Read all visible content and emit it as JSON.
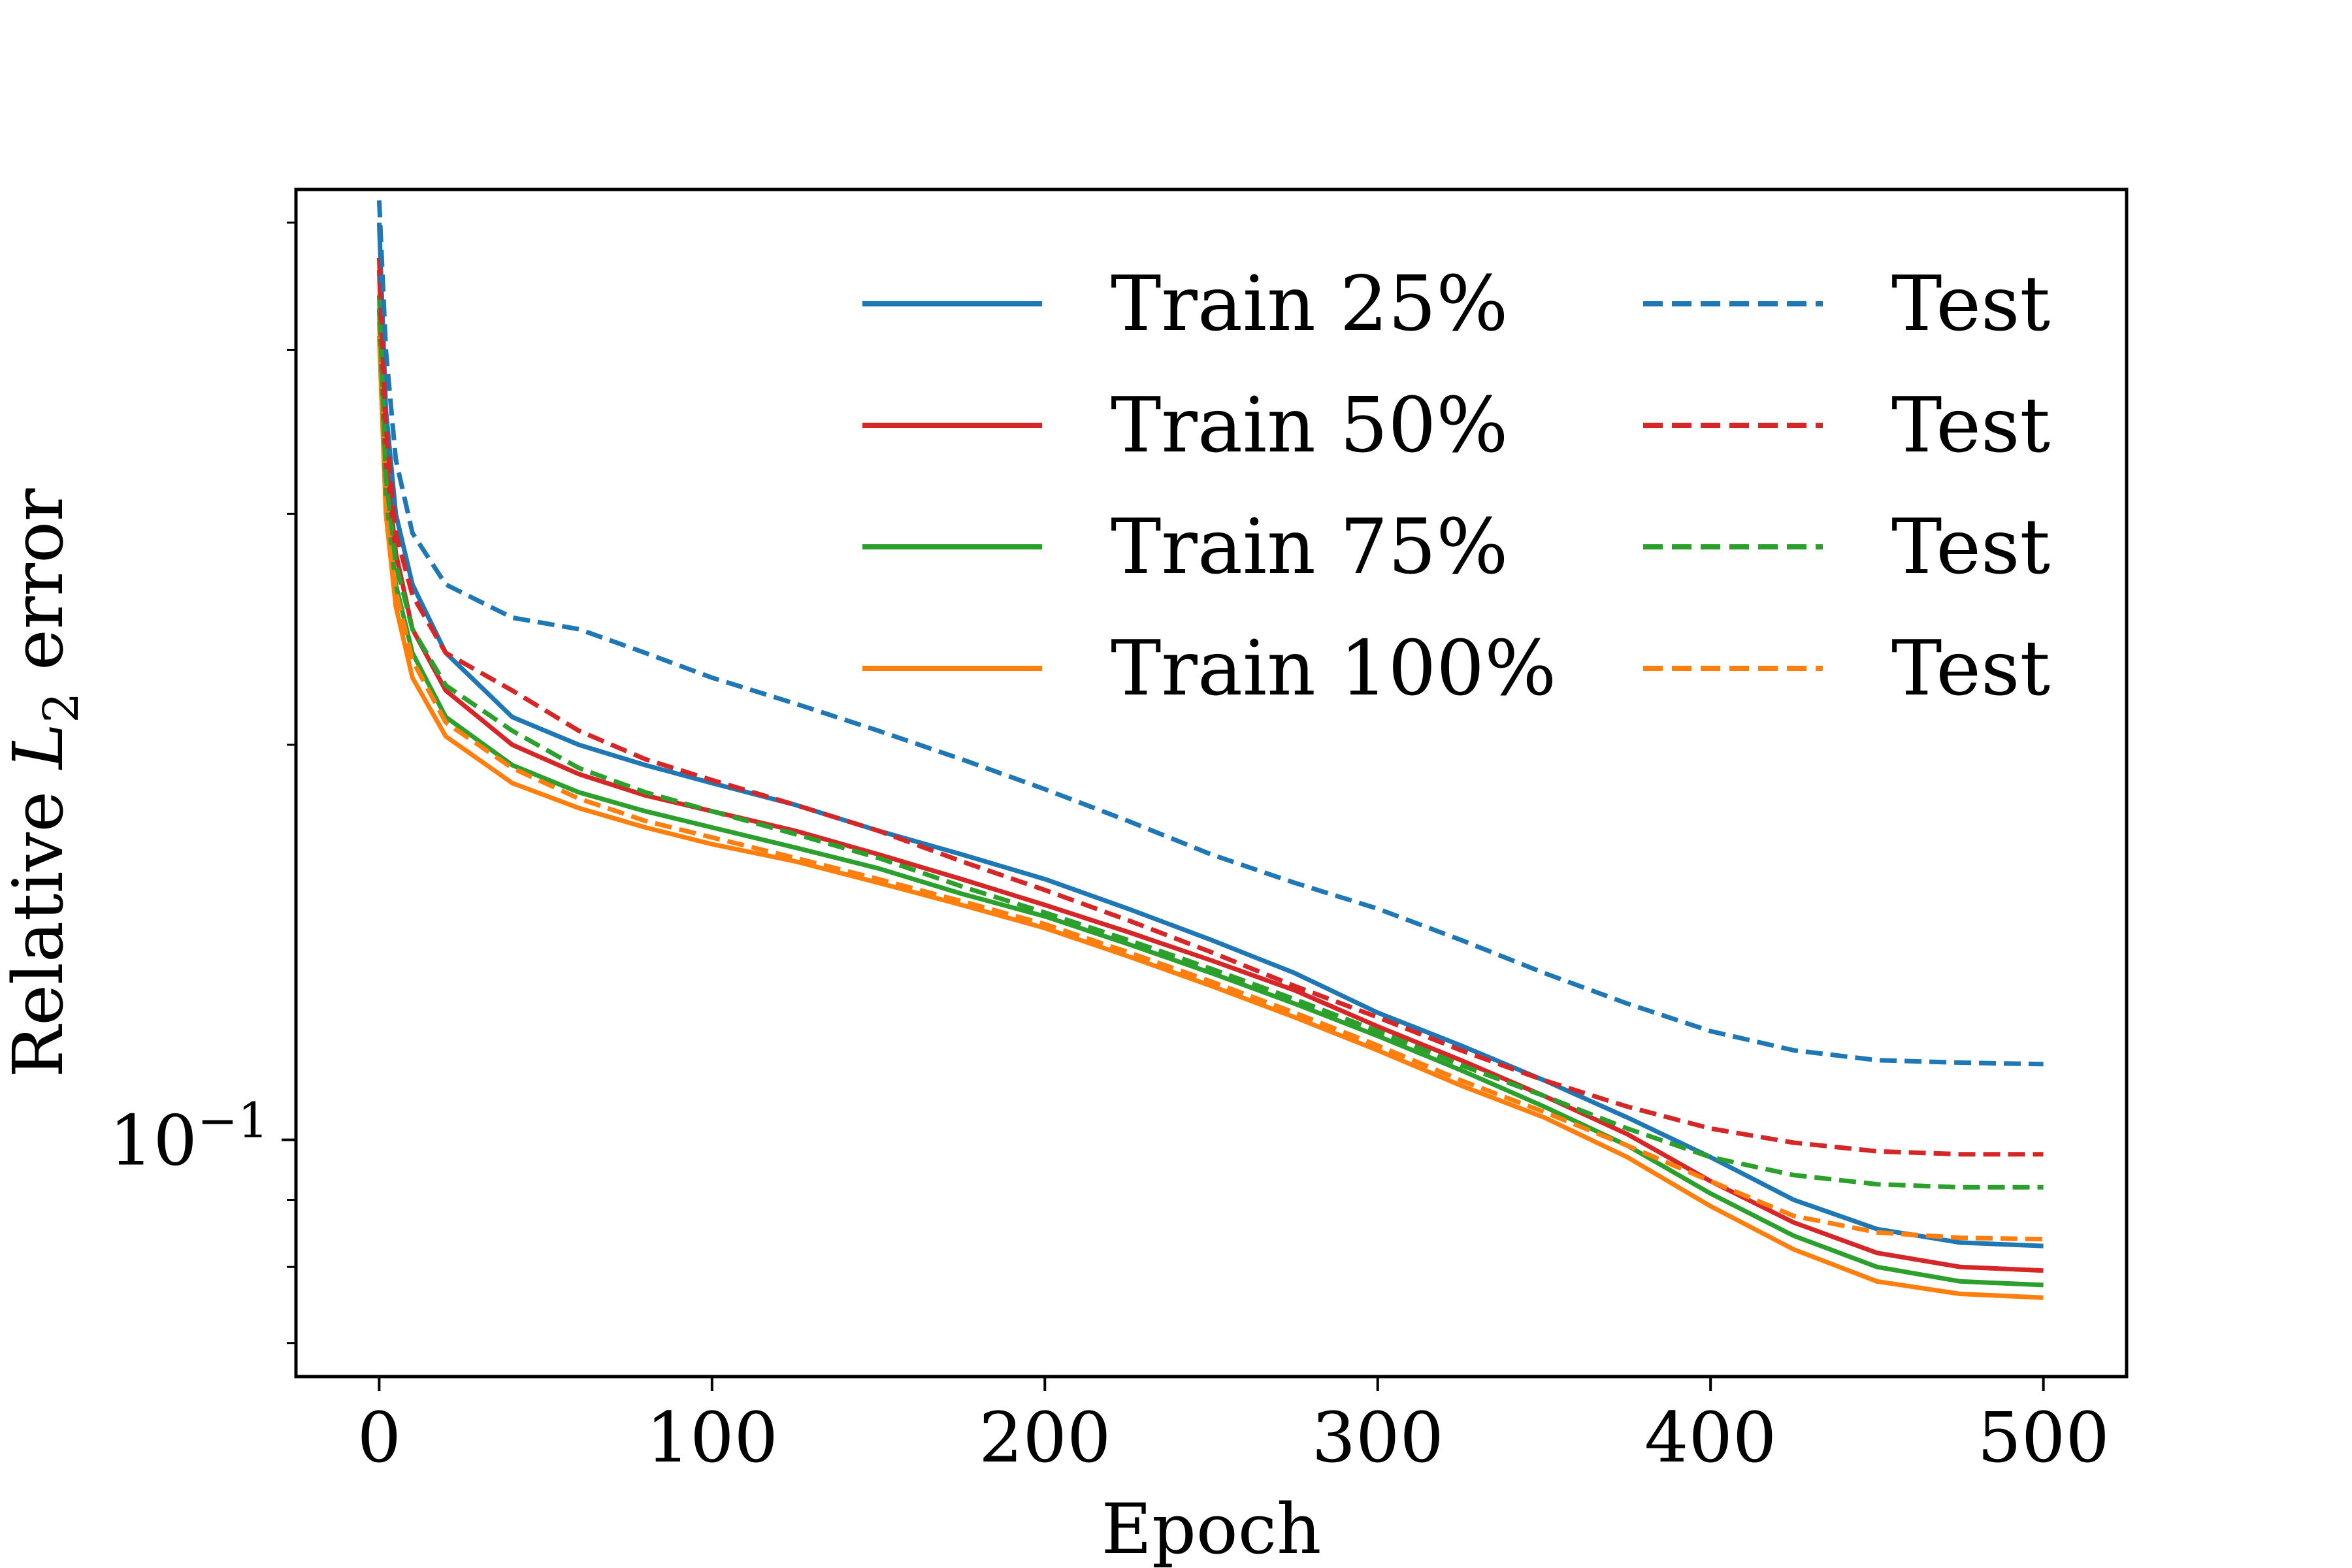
{
  "chart_data": {
    "type": "line",
    "title": "",
    "xlabel": "Epoch",
    "ylabel": "Relative L2 error",
    "ylabel_parts": {
      "main": "Relative ",
      "symbol": "L",
      "sub": "2",
      "rest": " error"
    },
    "xlim": [
      -25,
      525
    ],
    "ylim": [
      0.066,
      0.53
    ],
    "yscale": "log",
    "grid": false,
    "legend_placement": "top-right",
    "legend_columns": 2,
    "x_ticks": [
      0,
      100,
      200,
      300,
      400,
      500
    ],
    "x_tick_labels": [
      "0",
      "100",
      "200",
      "300",
      "400",
      "500"
    ],
    "y_major_ticks": [
      0.1
    ],
    "y_major_tick_labels": [
      {
        "base": "10",
        "exp": "−1"
      }
    ],
    "y_minor_ticks": [
      0.07,
      0.08,
      0.09,
      0.2,
      0.3,
      0.4,
      0.5
    ],
    "series": [
      {
        "name": "Train 25%",
        "color": "#1f77b4",
        "style": "solid",
        "x": [
          0,
          2,
          5,
          10,
          20,
          40,
          60,
          80,
          100,
          125,
          150,
          175,
          200,
          225,
          250,
          275,
          300,
          325,
          350,
          375,
          400,
          425,
          450,
          475,
          500
        ],
        "y": [
          0.5,
          0.36,
          0.3,
          0.265,
          0.235,
          0.21,
          0.2,
          0.193,
          0.187,
          0.18,
          0.172,
          0.165,
          0.158,
          0.15,
          0.142,
          0.134,
          0.125,
          0.118,
          0.111,
          0.104,
          0.097,
          0.09,
          0.0855,
          0.0835,
          0.083
        ]
      },
      {
        "name": "Train 50%",
        "color": "#d62728",
        "style": "solid",
        "x": [
          0,
          2,
          5,
          10,
          20,
          40,
          60,
          80,
          100,
          125,
          150,
          175,
          200,
          225,
          250,
          275,
          300,
          325,
          350,
          375,
          400,
          425,
          450,
          475,
          500
        ],
        "y": [
          0.46,
          0.33,
          0.28,
          0.245,
          0.22,
          0.2,
          0.19,
          0.183,
          0.178,
          0.172,
          0.165,
          0.158,
          0.151,
          0.144,
          0.137,
          0.13,
          0.122,
          0.115,
          0.108,
          0.101,
          0.093,
          0.0865,
          0.082,
          0.08,
          0.0795
        ]
      },
      {
        "name": "Train 75%",
        "color": "#2ca02c",
        "style": "solid",
        "x": [
          0,
          2,
          5,
          10,
          20,
          40,
          60,
          80,
          100,
          125,
          150,
          175,
          200,
          225,
          250,
          275,
          300,
          325,
          350,
          375,
          400,
          425,
          450,
          475,
          500
        ],
        "y": [
          0.43,
          0.31,
          0.265,
          0.235,
          0.21,
          0.193,
          0.184,
          0.178,
          0.173,
          0.167,
          0.161,
          0.154,
          0.148,
          0.141,
          0.134,
          0.127,
          0.12,
          0.113,
          0.106,
          0.099,
          0.091,
          0.0845,
          0.08,
          0.078,
          0.0775
        ]
      },
      {
        "name": "Train 100%",
        "color": "#ff7f0e",
        "style": "solid",
        "x": [
          0,
          2,
          5,
          10,
          20,
          40,
          60,
          80,
          100,
          125,
          150,
          175,
          200,
          225,
          250,
          275,
          300,
          325,
          350,
          375,
          400,
          425,
          450,
          475,
          500
        ],
        "y": [
          0.41,
          0.3,
          0.255,
          0.225,
          0.203,
          0.187,
          0.179,
          0.173,
          0.168,
          0.163,
          0.157,
          0.151,
          0.145,
          0.138,
          0.131,
          0.124,
          0.117,
          0.11,
          0.104,
          0.097,
          0.089,
          0.0825,
          0.078,
          0.0763,
          0.0758
        ]
      },
      {
        "name": "Test",
        "color": "#1f77b4",
        "style": "dashed",
        "x": [
          0,
          2,
          5,
          10,
          20,
          40,
          60,
          80,
          100,
          125,
          150,
          175,
          200,
          225,
          250,
          275,
          300,
          325,
          350,
          375,
          400,
          425,
          450,
          475,
          500
        ],
        "y": [
          0.52,
          0.4,
          0.33,
          0.29,
          0.265,
          0.25,
          0.245,
          0.235,
          0.225,
          0.215,
          0.205,
          0.195,
          0.185,
          0.175,
          0.165,
          0.157,
          0.15,
          0.142,
          0.134,
          0.127,
          0.121,
          0.117,
          0.115,
          0.1145,
          0.1142
        ]
      },
      {
        "name": "Test",
        "color": "#d62728",
        "style": "dashed",
        "x": [
          0,
          2,
          5,
          10,
          20,
          40,
          60,
          80,
          100,
          125,
          150,
          175,
          200,
          225,
          250,
          275,
          300,
          325,
          350,
          375,
          400,
          425,
          450,
          475,
          500
        ],
        "y": [
          0.47,
          0.35,
          0.29,
          0.26,
          0.235,
          0.22,
          0.205,
          0.195,
          0.188,
          0.18,
          0.172,
          0.163,
          0.155,
          0.147,
          0.139,
          0.131,
          0.124,
          0.117,
          0.111,
          0.106,
          0.102,
          0.0995,
          0.098,
          0.0975,
          0.0975
        ]
      },
      {
        "name": "Test",
        "color": "#2ca02c",
        "style": "dashed",
        "x": [
          0,
          2,
          5,
          10,
          20,
          40,
          60,
          80,
          100,
          125,
          150,
          175,
          200,
          225,
          250,
          275,
          300,
          325,
          350,
          375,
          400,
          425,
          450,
          475,
          500
        ],
        "y": [
          0.44,
          0.32,
          0.275,
          0.245,
          0.222,
          0.205,
          0.192,
          0.184,
          0.178,
          0.171,
          0.164,
          0.156,
          0.149,
          0.142,
          0.135,
          0.128,
          0.121,
          0.114,
          0.108,
          0.102,
          0.097,
          0.094,
          0.0925,
          0.092,
          0.092
        ]
      },
      {
        "name": "Test",
        "color": "#ff7f0e",
        "style": "dashed",
        "x": [
          0,
          2,
          5,
          10,
          20,
          40,
          60,
          80,
          100,
          125,
          150,
          175,
          200,
          225,
          250,
          275,
          300,
          325,
          350,
          375,
          400,
          425,
          450,
          475,
          500
        ],
        "y": [
          0.42,
          0.31,
          0.262,
          0.232,
          0.208,
          0.192,
          0.182,
          0.175,
          0.17,
          0.164,
          0.158,
          0.152,
          0.146,
          0.139,
          0.132,
          0.125,
          0.118,
          0.111,
          0.105,
          0.099,
          0.093,
          0.0875,
          0.085,
          0.0842,
          0.084
        ]
      }
    ]
  }
}
